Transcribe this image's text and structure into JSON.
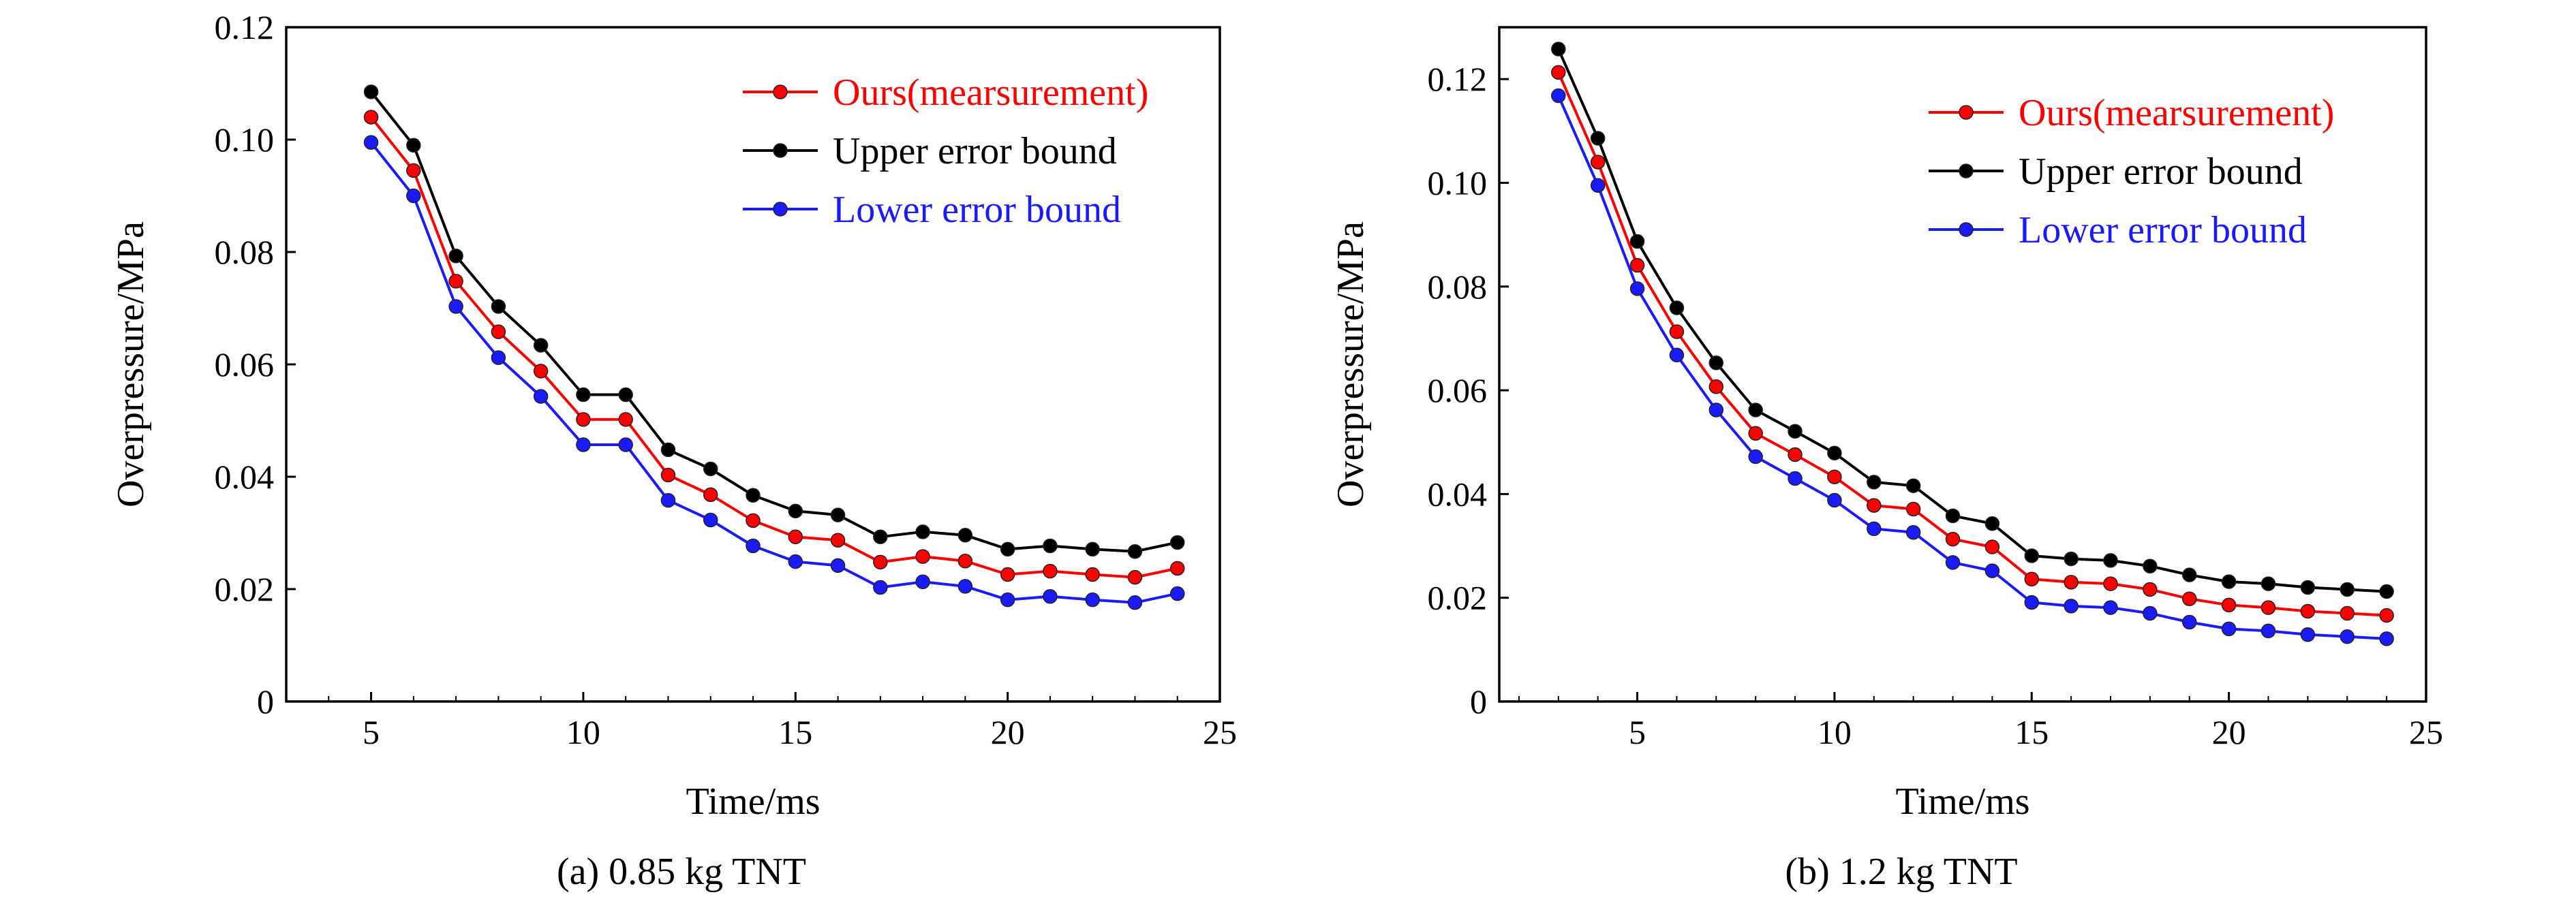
{
  "figure": {
    "captions": [
      "(a) 0.85 kg TNT",
      "(b) 1.2 kg TNT"
    ]
  },
  "chart_data": [
    {
      "type": "line",
      "title": "",
      "caption": "(a) 0.85 kg TNT",
      "xlabel": "Time/ms",
      "ylabel": "Overpressure/MPa",
      "xlim": [
        3,
        25
      ],
      "ylim": [
        0,
        0.12
      ],
      "xticks": [
        5,
        10,
        15,
        20,
        25
      ],
      "xtick_labels": [
        "5",
        "10",
        "15",
        "20",
        "25"
      ],
      "yticks": [
        0,
        0.02,
        0.04,
        0.06,
        0.08,
        0.1,
        0.12
      ],
      "ytick_labels": [
        "0",
        "0.02",
        "0.04",
        "0.06",
        "0.08",
        "0.10",
        "0.12"
      ],
      "grid": false,
      "legend_position": "top-right",
      "x": [
        5,
        6,
        7,
        8,
        9,
        10,
        11,
        12,
        13,
        14,
        15,
        16,
        17,
        18,
        19,
        20,
        21,
        22,
        23,
        24
      ],
      "series": [
        {
          "name": "Ours(mearsurement)",
          "color": "#ff0000",
          "values": [
            0.104,
            0.0945,
            0.0748,
            0.0658,
            0.0588,
            0.0502,
            0.0502,
            0.0403,
            0.0368,
            0.0322,
            0.0293,
            0.0287,
            0.0248,
            0.0258,
            0.025,
            0.0226,
            0.0232,
            0.0226,
            0.0221,
            0.0237
          ]
        },
        {
          "name": "Upper error bound",
          "color": "#000000",
          "values": [
            0.1085,
            0.099,
            0.0793,
            0.0703,
            0.0634,
            0.0546,
            0.0546,
            0.0448,
            0.0414,
            0.0367,
            0.0339,
            0.0332,
            0.0293,
            0.0302,
            0.0296,
            0.0271,
            0.0277,
            0.0271,
            0.0267,
            0.0283
          ]
        },
        {
          "name": "Lower error bound",
          "color": "#1a1aff",
          "values": [
            0.0995,
            0.09,
            0.0703,
            0.0612,
            0.0543,
            0.0457,
            0.0457,
            0.0358,
            0.0323,
            0.0277,
            0.0249,
            0.0242,
            0.0203,
            0.0213,
            0.0205,
            0.0181,
            0.0187,
            0.0181,
            0.0176,
            0.0192
          ]
        }
      ]
    },
    {
      "type": "line",
      "title": "",
      "caption": "(b) 1.2 kg TNT",
      "xlabel": "Time/ms",
      "ylabel": "Overpressure/MPa",
      "xlim": [
        1.5,
        25
      ],
      "ylim": [
        0,
        0.13
      ],
      "xticks": [
        5,
        10,
        15,
        20,
        25
      ],
      "xtick_labels": [
        "5",
        "10",
        "15",
        "20",
        "25"
      ],
      "yticks": [
        0,
        0.02,
        0.04,
        0.06,
        0.08,
        0.1,
        0.12
      ],
      "ytick_labels": [
        "0",
        "0.02",
        "0.04",
        "0.06",
        "0.08",
        "0.10",
        "0.12"
      ],
      "grid": false,
      "legend_position": "top-right",
      "x": [
        3,
        4,
        5,
        6,
        7,
        8,
        9,
        10,
        11,
        12,
        13,
        14,
        15,
        16,
        17,
        18,
        19,
        20,
        21,
        22,
        23,
        24
      ],
      "series": [
        {
          "name": "Ours(mearsurement)",
          "color": "#ff0000",
          "values": [
            0.1213,
            0.104,
            0.0841,
            0.0713,
            0.0607,
            0.0517,
            0.0476,
            0.0433,
            0.0378,
            0.0371,
            0.0313,
            0.0298,
            0.0236,
            0.023,
            0.0227,
            0.0216,
            0.0198,
            0.0186,
            0.0181,
            0.0174,
            0.017,
            0.0166
          ]
        },
        {
          "name": "Upper error bound",
          "color": "#000000",
          "values": [
            0.1258,
            0.1086,
            0.0887,
            0.0759,
            0.0653,
            0.0562,
            0.0521,
            0.0479,
            0.0423,
            0.0416,
            0.0358,
            0.0343,
            0.0281,
            0.0275,
            0.0272,
            0.0261,
            0.0244,
            0.0231,
            0.0227,
            0.022,
            0.0216,
            0.0212
          ]
        },
        {
          "name": "Lower error bound",
          "color": "#1a1aff",
          "values": [
            0.1168,
            0.0995,
            0.0796,
            0.0668,
            0.0562,
            0.0472,
            0.043,
            0.0388,
            0.0333,
            0.0326,
            0.0268,
            0.0252,
            0.0191,
            0.0184,
            0.0181,
            0.017,
            0.0153,
            0.014,
            0.0136,
            0.0129,
            0.0125,
            0.0121
          ]
        }
      ]
    }
  ]
}
